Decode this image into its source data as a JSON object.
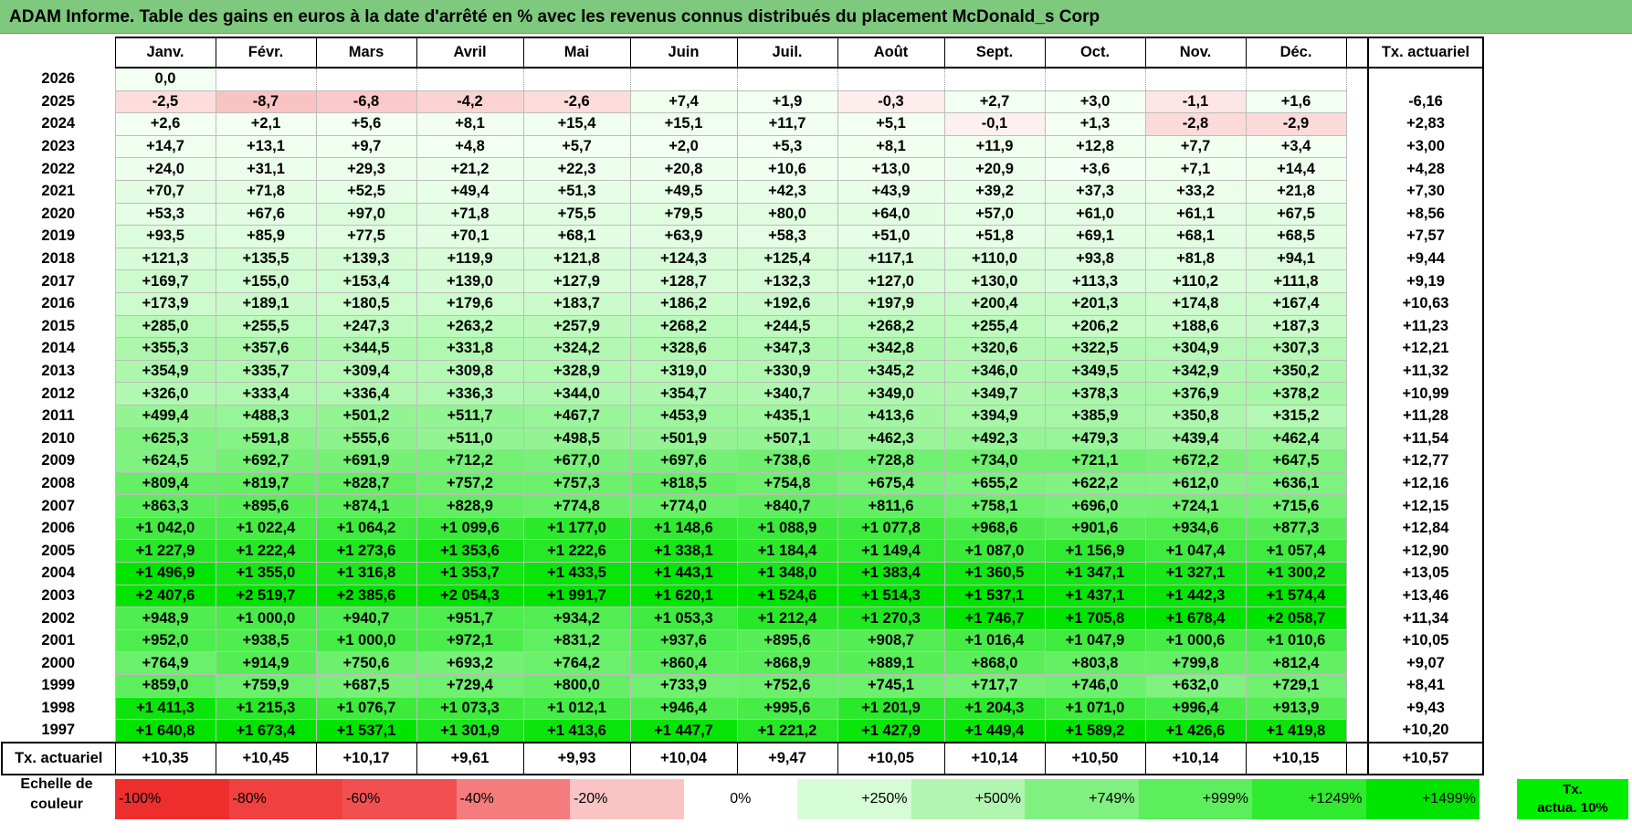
{
  "title": "ADAM Informe. Table des gains en euros à la date d'arrêté en % avec les revenus connus distribués du placement McDonald_s Corp",
  "chart_data": {
    "type": "table",
    "months": [
      "Janv.",
      "Févr.",
      "Mars",
      "Avril",
      "Mai",
      "Juin",
      "Juil.",
      "Août",
      "Sept.",
      "Oct.",
      "Nov.",
      "Déc."
    ],
    "tx_header": "Tx. actuariel",
    "rows": [
      {
        "year": "2026",
        "values": [
          "0,0",
          "",
          "",
          "",
          "",
          "",
          "",
          "",
          "",
          "",
          "",
          ""
        ],
        "tx": ""
      },
      {
        "year": "2025",
        "values": [
          "-2,5",
          "-8,7",
          "-6,8",
          "-4,2",
          "-2,6",
          "+7,4",
          "+1,9",
          "-0,3",
          "+2,7",
          "+3,0",
          "-1,1",
          "+1,6"
        ],
        "tx": "-6,16"
      },
      {
        "year": "2024",
        "values": [
          "+2,6",
          "+2,1",
          "+5,6",
          "+8,1",
          "+15,4",
          "+15,1",
          "+11,7",
          "+5,1",
          "-0,1",
          "+1,3",
          "-2,8",
          "-2,9"
        ],
        "tx": "+2,83"
      },
      {
        "year": "2023",
        "values": [
          "+14,7",
          "+13,1",
          "+9,7",
          "+4,8",
          "+5,7",
          "+2,0",
          "+5,3",
          "+8,1",
          "+11,9",
          "+12,8",
          "+7,7",
          "+3,4"
        ],
        "tx": "+3,00"
      },
      {
        "year": "2022",
        "values": [
          "+24,0",
          "+31,1",
          "+29,3",
          "+21,2",
          "+22,3",
          "+20,8",
          "+10,6",
          "+13,0",
          "+20,9",
          "+3,6",
          "+7,1",
          "+14,4"
        ],
        "tx": "+4,28"
      },
      {
        "year": "2021",
        "values": [
          "+70,7",
          "+71,8",
          "+52,5",
          "+49,4",
          "+51,3",
          "+49,5",
          "+42,3",
          "+43,9",
          "+39,2",
          "+37,3",
          "+33,2",
          "+21,8"
        ],
        "tx": "+7,30"
      },
      {
        "year": "2020",
        "values": [
          "+53,3",
          "+67,6",
          "+97,0",
          "+71,8",
          "+75,5",
          "+79,5",
          "+80,0",
          "+64,0",
          "+57,0",
          "+61,0",
          "+61,1",
          "+67,5"
        ],
        "tx": "+8,56"
      },
      {
        "year": "2019",
        "values": [
          "+93,5",
          "+85,9",
          "+77,5",
          "+70,1",
          "+68,1",
          "+63,9",
          "+58,3",
          "+51,0",
          "+51,8",
          "+69,1",
          "+68,1",
          "+68,5"
        ],
        "tx": "+7,57"
      },
      {
        "year": "2018",
        "values": [
          "+121,3",
          "+135,5",
          "+139,3",
          "+119,9",
          "+121,8",
          "+124,3",
          "+125,4",
          "+117,1",
          "+110,0",
          "+93,8",
          "+81,8",
          "+94,1"
        ],
        "tx": "+9,44"
      },
      {
        "year": "2017",
        "values": [
          "+169,7",
          "+155,0",
          "+153,4",
          "+139,0",
          "+127,9",
          "+128,7",
          "+132,3",
          "+127,0",
          "+130,0",
          "+113,3",
          "+110,2",
          "+111,8"
        ],
        "tx": "+9,19"
      },
      {
        "year": "2016",
        "values": [
          "+173,9",
          "+189,1",
          "+180,5",
          "+179,6",
          "+183,7",
          "+186,2",
          "+192,6",
          "+197,9",
          "+200,4",
          "+201,3",
          "+174,8",
          "+167,4"
        ],
        "tx": "+10,63"
      },
      {
        "year": "2015",
        "values": [
          "+285,0",
          "+255,5",
          "+247,3",
          "+263,2",
          "+257,9",
          "+268,2",
          "+244,5",
          "+268,2",
          "+255,4",
          "+206,2",
          "+188,6",
          "+187,3"
        ],
        "tx": "+11,23"
      },
      {
        "year": "2014",
        "values": [
          "+355,3",
          "+357,6",
          "+344,5",
          "+331,8",
          "+324,2",
          "+328,6",
          "+347,3",
          "+342,8",
          "+320,6",
          "+322,5",
          "+304,9",
          "+307,3"
        ],
        "tx": "+12,21"
      },
      {
        "year": "2013",
        "values": [
          "+354,9",
          "+335,7",
          "+309,4",
          "+309,8",
          "+328,9",
          "+319,0",
          "+330,9",
          "+345,2",
          "+346,0",
          "+349,5",
          "+342,9",
          "+350,2"
        ],
        "tx": "+11,32"
      },
      {
        "year": "2012",
        "values": [
          "+326,0",
          "+333,4",
          "+336,4",
          "+336,3",
          "+344,0",
          "+354,7",
          "+340,7",
          "+349,0",
          "+349,7",
          "+378,3",
          "+376,9",
          "+378,2"
        ],
        "tx": "+10,99"
      },
      {
        "year": "2011",
        "values": [
          "+499,4",
          "+488,3",
          "+501,2",
          "+511,7",
          "+467,7",
          "+453,9",
          "+435,1",
          "+413,6",
          "+394,9",
          "+385,9",
          "+350,8",
          "+315,2"
        ],
        "tx": "+11,28"
      },
      {
        "year": "2010",
        "values": [
          "+625,3",
          "+591,8",
          "+555,6",
          "+511,0",
          "+498,5",
          "+501,9",
          "+507,1",
          "+462,3",
          "+492,3",
          "+479,3",
          "+439,4",
          "+462,4"
        ],
        "tx": "+11,54"
      },
      {
        "year": "2009",
        "values": [
          "+624,5",
          "+692,7",
          "+691,9",
          "+712,2",
          "+677,0",
          "+697,6",
          "+738,6",
          "+728,8",
          "+734,0",
          "+721,1",
          "+672,2",
          "+647,5"
        ],
        "tx": "+12,77"
      },
      {
        "year": "2008",
        "values": [
          "+809,4",
          "+819,7",
          "+828,7",
          "+757,2",
          "+757,3",
          "+818,5",
          "+754,8",
          "+675,4",
          "+655,2",
          "+622,2",
          "+612,0",
          "+636,1"
        ],
        "tx": "+12,16"
      },
      {
        "year": "2007",
        "values": [
          "+863,3",
          "+895,6",
          "+874,1",
          "+828,9",
          "+774,8",
          "+774,0",
          "+840,7",
          "+811,6",
          "+758,1",
          "+696,0",
          "+724,1",
          "+715,6"
        ],
        "tx": "+12,15"
      },
      {
        "year": "2006",
        "values": [
          "+1 042,0",
          "+1 022,4",
          "+1 064,2",
          "+1 099,6",
          "+1 177,0",
          "+1 148,6",
          "+1 088,9",
          "+1 077,8",
          "+968,6",
          "+901,6",
          "+934,6",
          "+877,3"
        ],
        "tx": "+12,84"
      },
      {
        "year": "2005",
        "values": [
          "+1 227,9",
          "+1 222,4",
          "+1 273,6",
          "+1 353,6",
          "+1 222,6",
          "+1 338,1",
          "+1 184,4",
          "+1 149,4",
          "+1 087,0",
          "+1 156,9",
          "+1 047,4",
          "+1 057,4"
        ],
        "tx": "+12,90"
      },
      {
        "year": "2004",
        "values": [
          "+1 496,9",
          "+1 355,0",
          "+1 316,8",
          "+1 353,7",
          "+1 433,5",
          "+1 443,1",
          "+1 348,0",
          "+1 383,4",
          "+1 360,5",
          "+1 347,1",
          "+1 327,1",
          "+1 300,2"
        ],
        "tx": "+13,05"
      },
      {
        "year": "2003",
        "values": [
          "+2 407,6",
          "+2 519,7",
          "+2 385,6",
          "+2 054,3",
          "+1 991,7",
          "+1 620,1",
          "+1 524,6",
          "+1 514,3",
          "+1 537,1",
          "+1 437,1",
          "+1 442,3",
          "+1 574,4"
        ],
        "tx": "+13,46"
      },
      {
        "year": "2002",
        "values": [
          "+948,9",
          "+1 000,0",
          "+940,7",
          "+951,7",
          "+934,2",
          "+1 053,3",
          "+1 212,4",
          "+1 270,3",
          "+1 746,7",
          "+1 705,8",
          "+1 678,4",
          "+2 058,7"
        ],
        "tx": "+11,34"
      },
      {
        "year": "2001",
        "values": [
          "+952,0",
          "+938,5",
          "+1 000,0",
          "+972,1",
          "+831,2",
          "+937,6",
          "+895,6",
          "+908,7",
          "+1 016,4",
          "+1 047,9",
          "+1 000,6",
          "+1 010,6"
        ],
        "tx": "+10,05"
      },
      {
        "year": "2000",
        "values": [
          "+764,9",
          "+914,9",
          "+750,6",
          "+693,2",
          "+764,2",
          "+860,4",
          "+868,9",
          "+889,1",
          "+868,0",
          "+803,8",
          "+799,8",
          "+812,4"
        ],
        "tx": "+9,07"
      },
      {
        "year": "1999",
        "values": [
          "+859,0",
          "+759,9",
          "+687,5",
          "+729,4",
          "+800,0",
          "+733,9",
          "+752,6",
          "+745,1",
          "+717,7",
          "+746,0",
          "+632,0",
          "+729,1"
        ],
        "tx": "+8,41"
      },
      {
        "year": "1998",
        "values": [
          "+1 411,3",
          "+1 215,3",
          "+1 076,7",
          "+1 073,3",
          "+1 012,1",
          "+946,4",
          "+995,6",
          "+1 201,9",
          "+1 204,3",
          "+1 071,0",
          "+996,4",
          "+913,9"
        ],
        "tx": "+9,43"
      },
      {
        "year": "1997",
        "values": [
          "+1 640,8",
          "+1 673,4",
          "+1 537,1",
          "+1 301,9",
          "+1 413,6",
          "+1 447,7",
          "+1 221,2",
          "+1 427,9",
          "+1 449,4",
          "+1 589,2",
          "+1 426,6",
          "+1 419,8"
        ],
        "tx": "+10,20"
      }
    ],
    "footer": {
      "label": "Tx. actuariel",
      "values": [
        "+10,35",
        "+10,45",
        "+10,17",
        "+9,61",
        "+9,93",
        "+10,04",
        "+9,47",
        "+10,05",
        "+10,14",
        "+10,50",
        "+10,14",
        "+10,15"
      ],
      "tx": "+10,57"
    },
    "scale": {
      "label_line1": "Echelle de",
      "label_line2": "couleur",
      "items": [
        {
          "label": "-100%",
          "color": "#ee2d2d",
          "align": "left"
        },
        {
          "label": "-80%",
          "color": "#f04040",
          "align": "left"
        },
        {
          "label": "-60%",
          "color": "#f25050",
          "align": "left"
        },
        {
          "label": "-40%",
          "color": "#f57c7c",
          "align": "left"
        },
        {
          "label": "-20%",
          "color": "#fac4c4",
          "align": "left"
        },
        {
          "label": "0%",
          "color": "#ffffff",
          "align": "center"
        },
        {
          "label": "+250%",
          "color": "#d6fcd6",
          "align": "right"
        },
        {
          "label": "+500%",
          "color": "#b0f5b0",
          "align": "right"
        },
        {
          "label": "+749%",
          "color": "#80f080",
          "align": "right"
        },
        {
          "label": "+999%",
          "color": "#5cee5c",
          "align": "right"
        },
        {
          "label": "+1249%",
          "color": "#30ea30",
          "align": "right"
        },
        {
          "label": "+1499%",
          "color": "#00e400",
          "align": "right"
        }
      ],
      "tx_line1": "Tx.",
      "tx_line2": "actua. 10%"
    }
  }
}
